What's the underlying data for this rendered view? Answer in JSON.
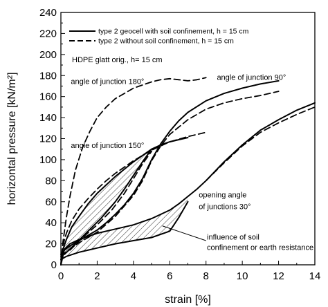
{
  "chart_data": {
    "type": "line",
    "xlabel": "strain [%]",
    "ylabel": "horizontal pressure [kN/m²]",
    "xlim": [
      0,
      14
    ],
    "ylim": [
      0,
      240
    ],
    "xticks": [
      0,
      2,
      4,
      6,
      8,
      10,
      12,
      14
    ],
    "yticks": [
      0,
      20,
      40,
      60,
      80,
      100,
      120,
      140,
      160,
      180,
      200,
      220,
      240
    ],
    "legend": {
      "placement": "top-left",
      "entries": [
        {
          "label": "type 2 geocell with soil confinement, h = 15 cm",
          "style": "solid"
        },
        {
          "label": "type 2 without soil confinement, h = 15 cm",
          "style": "dashed"
        }
      ]
    },
    "subtitle": "HDPE glatt orig., h= 15 cm",
    "annotations": [
      {
        "text": "angle of junction 180°",
        "x": 0.55,
        "y": 172
      },
      {
        "text": "angle of junction 90°",
        "x": 8.6,
        "y": 176
      },
      {
        "text": "angle of junction 150°",
        "x": 0.55,
        "y": 111
      },
      {
        "text": "opening angle",
        "x": 7.6,
        "y": 64
      },
      {
        "text": "of junctions 30°",
        "x": 7.6,
        "y": 53
      },
      {
        "text": "influence of soil",
        "x": 8.05,
        "y": 24
      },
      {
        "text": "confinement or earth resistance",
        "x": 8.05,
        "y": 14
      }
    ],
    "series": [
      {
        "style": "solid",
        "group": "90",
        "x": [
          0,
          0.2,
          0.5,
          1,
          1.5,
          2,
          2.5,
          3,
          3.5,
          4,
          4.5,
          5,
          5.5,
          6,
          6.5,
          7,
          8,
          9,
          10,
          11,
          12
        ],
        "y": [
          10,
          14,
          18,
          23,
          28,
          33,
          40,
          48,
          57,
          68,
          82,
          100,
          115,
          127,
          137,
          145,
          156,
          163,
          168,
          172,
          175
        ]
      },
      {
        "style": "dashed",
        "group": "90",
        "x": [
          0,
          0.5,
          1,
          2,
          3,
          4,
          4.5,
          5,
          5.5,
          6,
          7,
          8,
          9,
          10,
          11,
          12
        ],
        "y": [
          8,
          15,
          21,
          31,
          46,
          66,
          80,
          99,
          113,
          124,
          138,
          148,
          154,
          158,
          161,
          165
        ]
      },
      {
        "style": "solid",
        "group": "150-load",
        "x": [
          0,
          0.1,
          0.3,
          0.6,
          1,
          1.5,
          2,
          2.5,
          3,
          3.5,
          4,
          4.5,
          5,
          5.5,
          6,
          6.5,
          7
        ],
        "y": [
          0,
          14,
          24,
          36,
          46,
          58,
          68,
          76,
          84,
          91,
          98,
          104,
          110,
          114,
          117,
          119,
          121
        ]
      },
      {
        "style": "solid",
        "group": "150-unload",
        "x": [
          0.2,
          0.8,
          1.5,
          2.2,
          3,
          3.5,
          4,
          4.5,
          5
        ],
        "y": [
          10,
          20,
          32,
          44,
          60,
          72,
          85,
          98,
          110
        ]
      },
      {
        "style": "dashed",
        "group": "150-load",
        "x": [
          0,
          0.1,
          0.3,
          0.6,
          1,
          1.5,
          2,
          2.5,
          3,
          3.5,
          4,
          4.5,
          5,
          5.5,
          6,
          7,
          8
        ],
        "y": [
          0,
          18,
          30,
          42,
          53,
          63,
          72,
          80,
          87,
          93,
          99,
          104,
          109,
          113,
          117,
          122,
          126
        ]
      },
      {
        "style": "dashed",
        "group": "150-unload",
        "x": [
          0.5,
          1.2,
          2,
          2.8,
          3.5,
          4,
          4.5,
          5
        ],
        "y": [
          14,
          26,
          38,
          52,
          68,
          82,
          96,
          108
        ]
      },
      {
        "style": "dashed",
        "group": "180",
        "x": [
          0,
          0.1,
          0.3,
          0.5,
          0.8,
          1.2,
          1.6,
          2,
          2.5,
          3,
          3.5,
          4,
          4.5,
          5,
          5.5,
          6,
          6.5,
          7,
          7.5,
          8
        ],
        "y": [
          0,
          20,
          45,
          65,
          90,
          112,
          127,
          140,
          150,
          158,
          163,
          168,
          171,
          174,
          176,
          177,
          176,
          175,
          176,
          178
        ]
      },
      {
        "style": "solid",
        "group": "30-load",
        "x": [
          0,
          0.2,
          0.5,
          1,
          1.5,
          2,
          3,
          4,
          5,
          6,
          6.5,
          7,
          7.5,
          8,
          9,
          10,
          11,
          12,
          13,
          14
        ],
        "y": [
          0,
          15,
          20,
          24,
          27,
          30,
          34,
          38,
          44,
          52,
          58,
          65,
          72,
          80,
          98,
          114,
          128,
          138,
          147,
          154
        ]
      },
      {
        "style": "solid",
        "group": "30-unload",
        "x": [
          0,
          0.3,
          1,
          2,
          3,
          4,
          5,
          6,
          6.5,
          7
        ],
        "y": [
          5,
          8,
          12,
          16,
          20,
          23,
          26,
          32,
          45,
          60
        ]
      },
      {
        "style": "dashed",
        "group": "30",
        "x": [
          8,
          9,
          10,
          11,
          12,
          13,
          14
        ],
        "y": [
          80,
          97,
          113,
          126,
          135,
          143,
          150
        ]
      }
    ],
    "grid": false
  }
}
